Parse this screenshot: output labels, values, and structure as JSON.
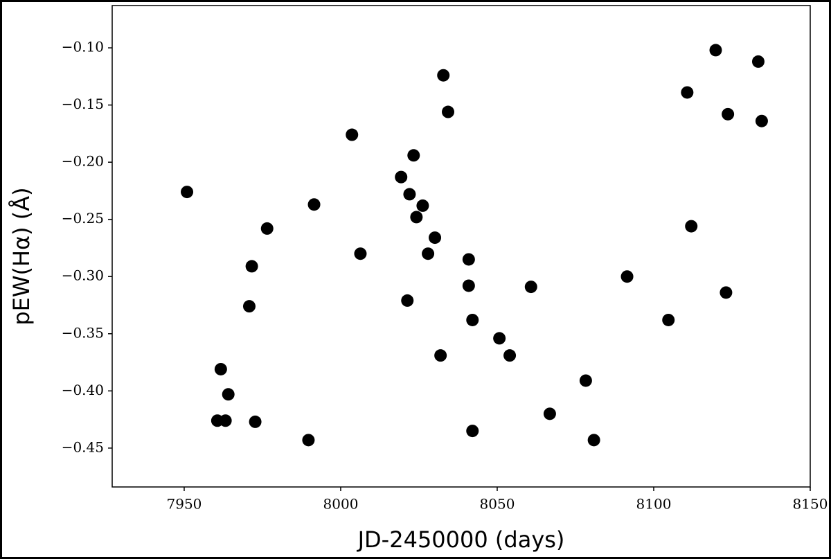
{
  "chart_data": {
    "type": "scatter",
    "x_label": "JD-2450000 (days)",
    "y_label": "pEW(Hα) (Å)",
    "color": "#000000",
    "x": [
      7950.9,
      7961.7,
      7960.6,
      7963.2,
      7964.1,
      7970.8,
      7971.6,
      7972.7,
      7976.5,
      7989.7,
      7991.5,
      8003.6,
      8006.3,
      8019.3,
      8021.3,
      8022.0,
      8023.3,
      8024.2,
      8026.2,
      8027.9,
      8030.1,
      8031.9,
      8032.8,
      8034.3,
      8040.9,
      8040.9,
      8042.1,
      8042.1,
      8050.7,
      8054.0,
      8060.8,
      8066.8,
      8078.3,
      8080.9,
      8091.5,
      8104.7,
      8110.7,
      8112.0,
      8119.8,
      8123.1,
      8123.7,
      8133.4,
      8134.5
    ],
    "values": [
      -0.226,
      -0.381,
      -0.426,
      -0.426,
      -0.403,
      -0.326,
      -0.291,
      -0.427,
      -0.258,
      -0.443,
      -0.237,
      -0.176,
      -0.28,
      -0.213,
      -0.321,
      -0.228,
      -0.194,
      -0.248,
      -0.238,
      -0.28,
      -0.266,
      -0.369,
      -0.124,
      -0.156,
      -0.285,
      -0.308,
      -0.338,
      -0.435,
      -0.354,
      -0.369,
      -0.309,
      -0.42,
      -0.391,
      -0.443,
      -0.3,
      -0.338,
      -0.139,
      -0.256,
      -0.102,
      -0.314,
      -0.158,
      -0.112,
      -0.164
    ],
    "xlim": [
      7927,
      8150
    ],
    "ylim": [
      -0.484,
      -0.063
    ],
    "xticks": [
      7950,
      8000,
      8050,
      8100,
      8150
    ],
    "yticks": [
      {
        "value": -0.1,
        "label": "−0.10"
      },
      {
        "value": -0.15,
        "label": "−0.15"
      },
      {
        "value": -0.2,
        "label": "−0.20"
      },
      {
        "value": -0.25,
        "label": "−0.25"
      },
      {
        "value": -0.3,
        "label": "−0.30"
      },
      {
        "value": -0.35,
        "label": "−0.35"
      },
      {
        "value": -0.4,
        "label": "−0.40"
      },
      {
        "value": -0.45,
        "label": "−0.45"
      }
    ]
  }
}
